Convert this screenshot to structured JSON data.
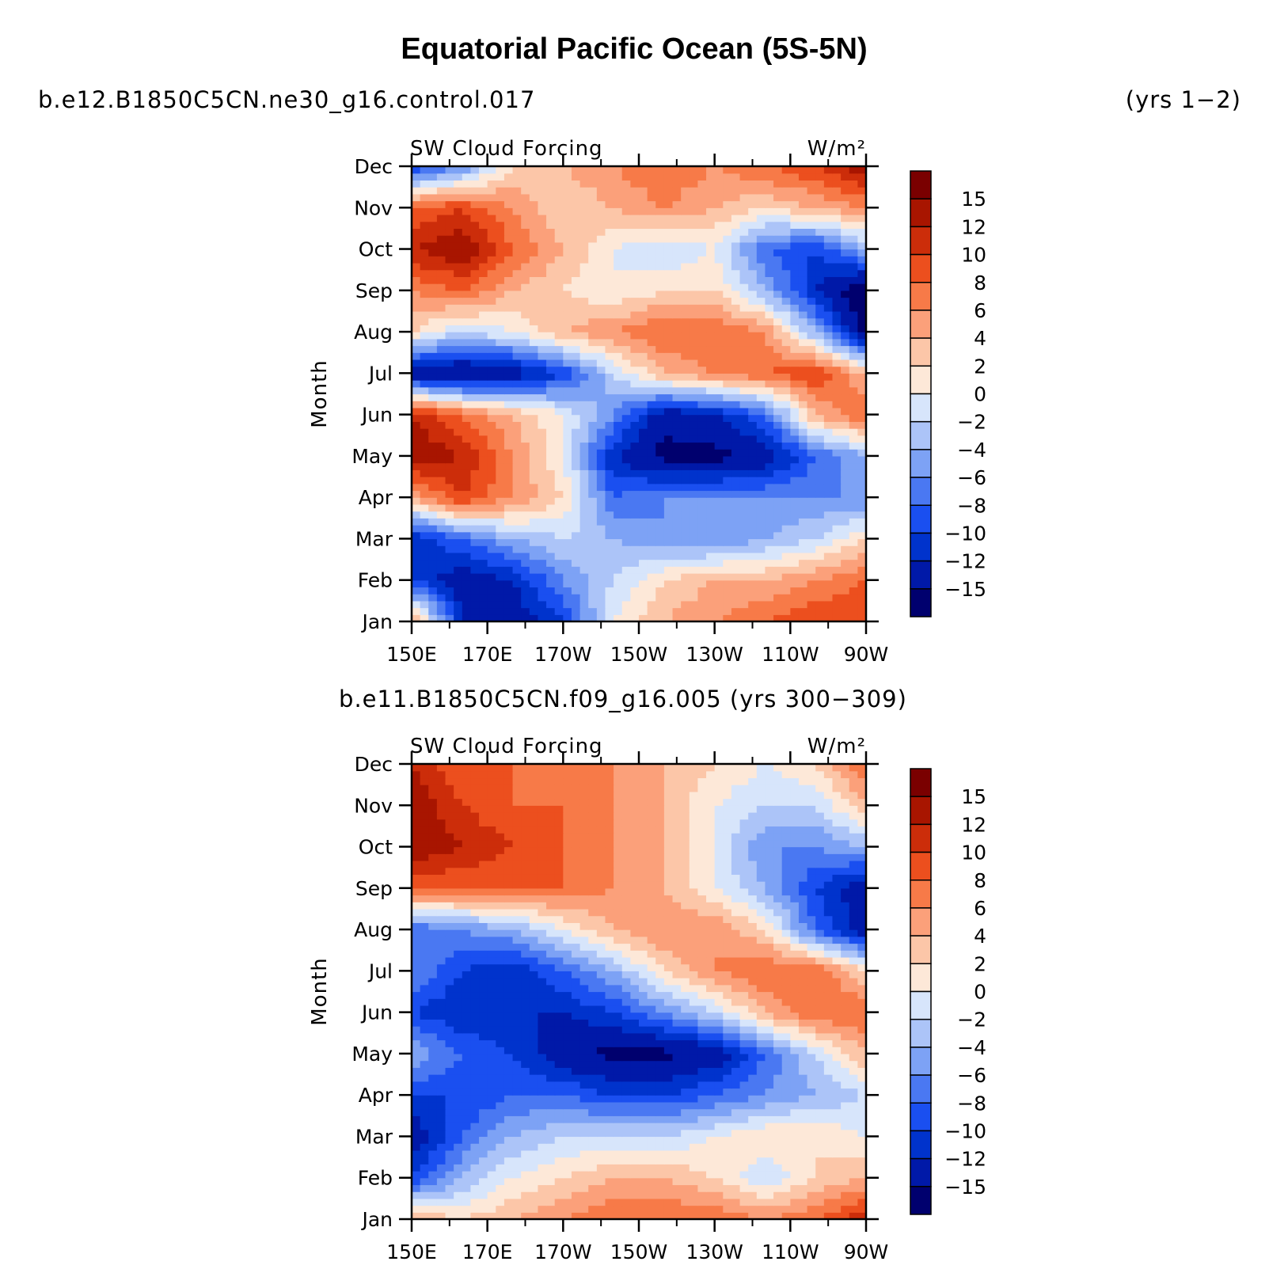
{
  "figure": {
    "title": "Equatorial Pacific Ocean (5S-5N)",
    "top_run": "b.e12.B1850C5CN.ne30_g16.control.017",
    "top_years": "(yrs 1−2)",
    "bottom_run_line": "b.e11.B1850C5CN.f09_g16.005 (yrs 300−309)"
  },
  "chart_data": [
    {
      "type": "heatmap",
      "variable": "SW Cloud Forcing",
      "units": "W/m²",
      "ylabel": "Month",
      "x": [
        "150E",
        "170E",
        "170W",
        "150W",
        "130W",
        "110W",
        "90W"
      ],
      "y": [
        "Jan",
        "Feb",
        "Mar",
        "Apr",
        "May",
        "Jun",
        "Jul",
        "Aug",
        "Sep",
        "Oct",
        "Nov",
        "Dec"
      ],
      "z": [
        [
          6,
          -12,
          -14,
          -10,
          0,
          4,
          6,
          8,
          10,
          10
        ],
        [
          -10,
          -14,
          -12,
          -6,
          -2,
          2,
          4,
          4,
          6,
          8
        ],
        [
          -12,
          -8,
          -4,
          -2,
          -4,
          -6,
          -6,
          -4,
          -2,
          2
        ],
        [
          4,
          10,
          6,
          2,
          -8,
          -6,
          -6,
          -6,
          -6,
          -6
        ],
        [
          14,
          12,
          6,
          0,
          -12,
          -16,
          -16,
          -14,
          -8,
          -4
        ],
        [
          12,
          8,
          4,
          0,
          -6,
          -14,
          -12,
          -8,
          4,
          8
        ],
        [
          -14,
          -16,
          -14,
          -10,
          -2,
          4,
          6,
          8,
          10,
          4
        ],
        [
          2,
          -2,
          0,
          4,
          6,
          8,
          8,
          6,
          -4,
          -16
        ],
        [
          6,
          8,
          4,
          2,
          0,
          2,
          2,
          -4,
          -12,
          -18
        ],
        [
          12,
          14,
          8,
          4,
          0,
          -2,
          0,
          -8,
          -10,
          -4
        ],
        [
          8,
          10,
          6,
          2,
          4,
          6,
          4,
          2,
          4,
          6
        ],
        [
          -10,
          -6,
          2,
          4,
          6,
          8,
          6,
          8,
          10,
          14
        ]
      ],
      "levels": [
        "15",
        "12",
        "10",
        "8",
        "6",
        "4",
        "2",
        "0",
        "−2",
        "−4",
        "−6",
        "−8",
        "−10",
        "−12",
        "−15"
      ]
    },
    {
      "type": "heatmap",
      "variable": "SW Cloud Forcing",
      "units": "W/m²",
      "ylabel": "Month",
      "x": [
        "150E",
        "170E",
        "170W",
        "150W",
        "130W",
        "110W",
        "90W"
      ],
      "y": [
        "Jan",
        "Feb",
        "Mar",
        "Apr",
        "May",
        "Jun",
        "Jul",
        "Aug",
        "Sep",
        "Oct",
        "Nov",
        "Dec"
      ],
      "z": [
        [
          4,
          2,
          4,
          6,
          8,
          8,
          8,
          6,
          8,
          12
        ],
        [
          -10,
          -4,
          0,
          2,
          4,
          4,
          2,
          -2,
          2,
          4
        ],
        [
          -14,
          -8,
          -4,
          -2,
          -2,
          -2,
          0,
          2,
          2,
          0
        ],
        [
          -10,
          -10,
          -8,
          -8,
          -10,
          -10,
          -8,
          -6,
          -4,
          -2
        ],
        [
          -4,
          -8,
          -10,
          -14,
          -16,
          -16,
          -14,
          -8,
          -2,
          4
        ],
        [
          -10,
          -12,
          -12,
          -12,
          -10,
          -6,
          -2,
          4,
          8,
          8
        ],
        [
          -6,
          -10,
          -12,
          -8,
          -4,
          2,
          6,
          8,
          8,
          2
        ],
        [
          -8,
          -6,
          -4,
          0,
          4,
          6,
          6,
          2,
          -8,
          -14
        ],
        [
          8,
          8,
          8,
          8,
          6,
          4,
          0,
          -4,
          -10,
          -14
        ],
        [
          14,
          12,
          10,
          8,
          6,
          4,
          0,
          -6,
          -6,
          -4
        ],
        [
          14,
          10,
          8,
          8,
          6,
          4,
          0,
          -2,
          -2,
          4
        ],
        [
          12,
          8,
          8,
          6,
          6,
          4,
          2,
          0,
          2,
          8
        ]
      ],
      "levels": [
        "15",
        "12",
        "10",
        "8",
        "6",
        "4",
        "2",
        "0",
        "−2",
        "−4",
        "−6",
        "−8",
        "−10",
        "−12",
        "−15"
      ]
    }
  ],
  "colors": {
    "palette": [
      "#00006e",
      "#0019a8",
      "#0033cc",
      "#1a4ff0",
      "#4a78f2",
      "#7da2f5",
      "#acc4f8",
      "#d7e5fb",
      "#fde8d8",
      "#fcc6a8",
      "#fba07a",
      "#f77a48",
      "#ec4f1e",
      "#cc2d0a",
      "#a81500",
      "#7a0000"
    ]
  }
}
